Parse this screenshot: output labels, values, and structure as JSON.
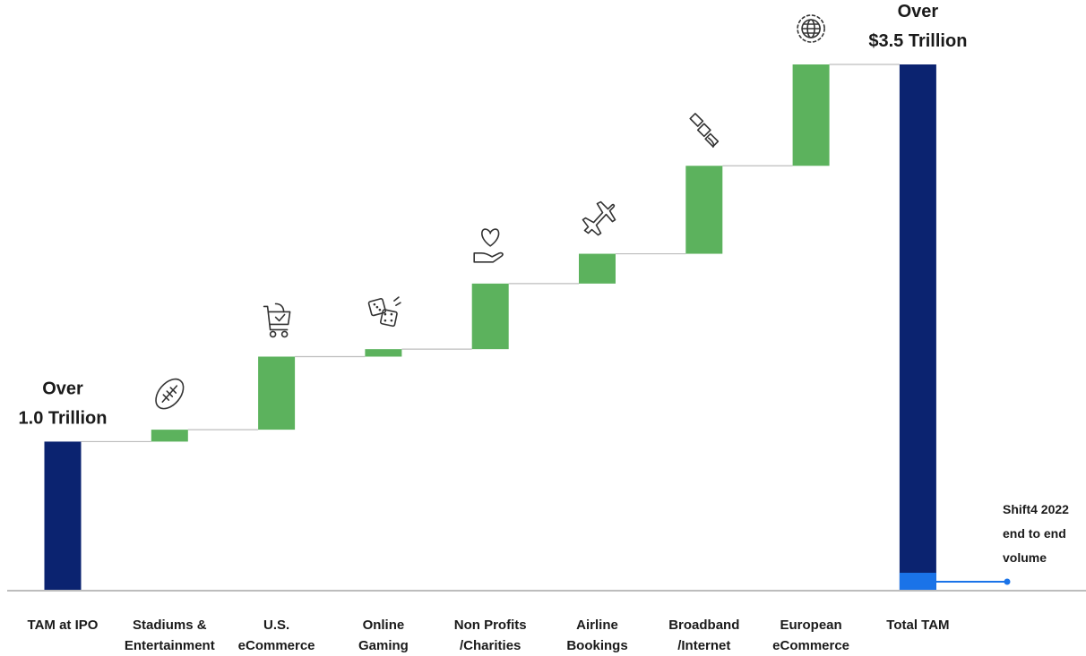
{
  "chart_data": {
    "type": "bar",
    "subtype": "waterfall",
    "categories": [
      [
        "TAM at IPO"
      ],
      [
        "Stadiums &",
        "Entertainment"
      ],
      [
        "U.S.",
        "eCommerce"
      ],
      [
        "Online",
        "Gaming"
      ],
      [
        "Non Profits",
        "/Charities"
      ],
      [
        "Airline",
        "Bookings"
      ],
      [
        "Broadband",
        "/Internet"
      ],
      [
        "European",
        "eCommerce"
      ],
      [
        "Total TAM"
      ]
    ],
    "steps": [
      {
        "kind": "total",
        "start": 0,
        "end": 1.0
      },
      {
        "kind": "increase",
        "start": 1.0,
        "end": 1.08
      },
      {
        "kind": "increase",
        "start": 1.08,
        "end": 1.57
      },
      {
        "kind": "increase",
        "start": 1.57,
        "end": 1.62
      },
      {
        "kind": "increase",
        "start": 1.62,
        "end": 2.06
      },
      {
        "kind": "increase",
        "start": 2.06,
        "end": 2.26
      },
      {
        "kind": "increase",
        "start": 2.26,
        "end": 2.85
      },
      {
        "kind": "increase",
        "start": 2.85,
        "end": 3.53
      },
      {
        "kind": "total",
        "start": 0,
        "end": 3.53
      }
    ],
    "highlight": {
      "category_index": 8,
      "value": 0.12,
      "label": [
        "Shift4 2022",
        "end to end",
        "volume"
      ],
      "color": "#1a73e8"
    },
    "top_labels": [
      {
        "category_index": 0,
        "lines": [
          "Over",
          "1.0 Trillion"
        ]
      },
      {
        "category_index": 8,
        "lines": [
          "Over",
          "$3.5 Trillion"
        ]
      }
    ],
    "icons": [
      null,
      "football-icon",
      "shopping-cart-icon",
      "dice-icon",
      "heart-hand-icon",
      "airplane-icon",
      "satellite-icon",
      "globe-icon",
      null
    ],
    "ylim": [
      0,
      3.6
    ],
    "colors": {
      "total": "#0b2370",
      "increase": "#5cb25d",
      "highlight": "#1a73e8",
      "connector": "#bdbdbd",
      "axis": "#bdbdbd"
    }
  }
}
